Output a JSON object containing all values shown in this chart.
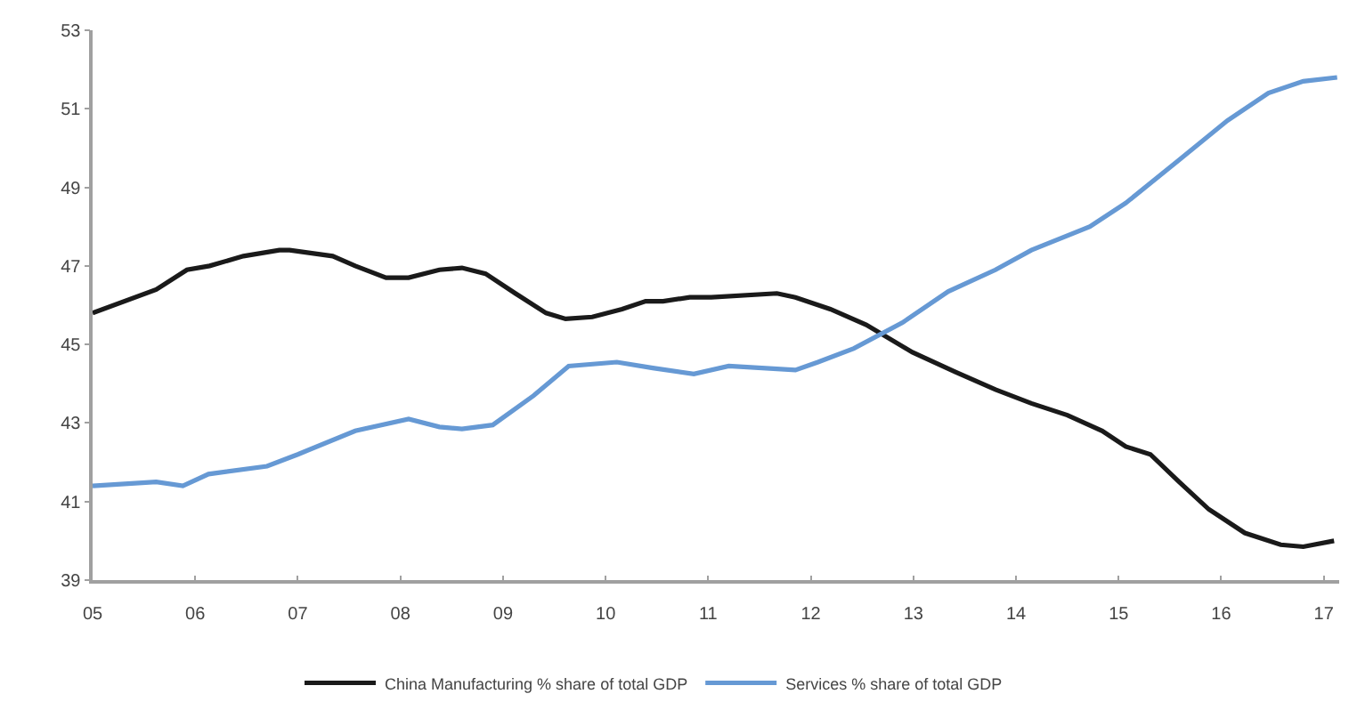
{
  "chart_data": {
    "type": "line",
    "series": [
      {
        "name": "China Manufacturing % share of total GDP",
        "color": "#1a1a1a",
        "x": [
          2005.0,
          2005.62,
          2005.92,
          2006.14,
          2006.47,
          2006.82,
          2006.92,
          2007.34,
          2007.56,
          2007.86,
          2008.08,
          2008.38,
          2008.6,
          2008.83,
          2009.12,
          2009.42,
          2009.61,
          2009.87,
          2010.16,
          2010.39,
          2010.56,
          2010.82,
          2011.03,
          2011.67,
          2011.85,
          2012.19,
          2012.54,
          2012.99,
          2013.41,
          2013.8,
          2014.15,
          2014.5,
          2014.84,
          2015.07,
          2015.31,
          2015.59,
          2015.88,
          2016.23,
          2016.58,
          2016.8,
          2017.1
        ],
        "values": [
          45.8,
          46.4,
          46.9,
          47.0,
          47.25,
          47.4,
          47.4,
          47.25,
          47.0,
          46.7,
          46.7,
          46.9,
          46.95,
          46.8,
          46.3,
          45.8,
          45.65,
          45.7,
          45.9,
          46.1,
          46.1,
          46.2,
          46.2,
          46.3,
          46.2,
          45.9,
          45.5,
          44.8,
          44.3,
          43.85,
          43.5,
          43.2,
          42.8,
          42.4,
          42.2,
          41.5,
          40.8,
          40.2,
          39.9,
          39.85,
          40.0
        ]
      },
      {
        "name": "Services % share of total GDP",
        "color": "#6699d4",
        "x": [
          2005.0,
          2005.62,
          2005.88,
          2006.13,
          2006.7,
          2007.0,
          2007.56,
          2008.08,
          2008.38,
          2008.6,
          2008.9,
          2009.3,
          2009.64,
          2010.11,
          2010.46,
          2010.86,
          2011.2,
          2011.85,
          2012.07,
          2012.42,
          2012.89,
          2013.34,
          2013.8,
          2014.15,
          2014.72,
          2015.07,
          2015.59,
          2016.06,
          2016.46,
          2016.8,
          2017.13
        ],
        "values": [
          41.4,
          41.5,
          41.4,
          41.7,
          41.9,
          42.2,
          42.8,
          43.1,
          42.9,
          42.85,
          42.95,
          43.7,
          44.45,
          44.55,
          44.4,
          44.25,
          44.45,
          44.35,
          44.55,
          44.9,
          45.55,
          46.35,
          46.9,
          47.4,
          48.0,
          48.6,
          49.7,
          50.7,
          51.4,
          51.7,
          51.8
        ]
      }
    ],
    "xlim": [
      2005,
      2017.15
    ],
    "xticks": [
      {
        "value": 2005,
        "label": "05"
      },
      {
        "value": 2006,
        "label": "06"
      },
      {
        "value": 2007,
        "label": "07"
      },
      {
        "value": 2008,
        "label": "08"
      },
      {
        "value": 2009,
        "label": "09"
      },
      {
        "value": 2010,
        "label": "10"
      },
      {
        "value": 2011,
        "label": "11"
      },
      {
        "value": 2012,
        "label": "12"
      },
      {
        "value": 2013,
        "label": "13"
      },
      {
        "value": 2014,
        "label": "14"
      },
      {
        "value": 2015,
        "label": "15"
      },
      {
        "value": 2016,
        "label": "16"
      },
      {
        "value": 2017,
        "label": "17"
      }
    ],
    "ylim": [
      39,
      53
    ],
    "yticks": [
      39,
      41,
      43,
      45,
      47,
      49,
      51,
      53
    ],
    "legend": "bottom",
    "line_style": "solid"
  }
}
